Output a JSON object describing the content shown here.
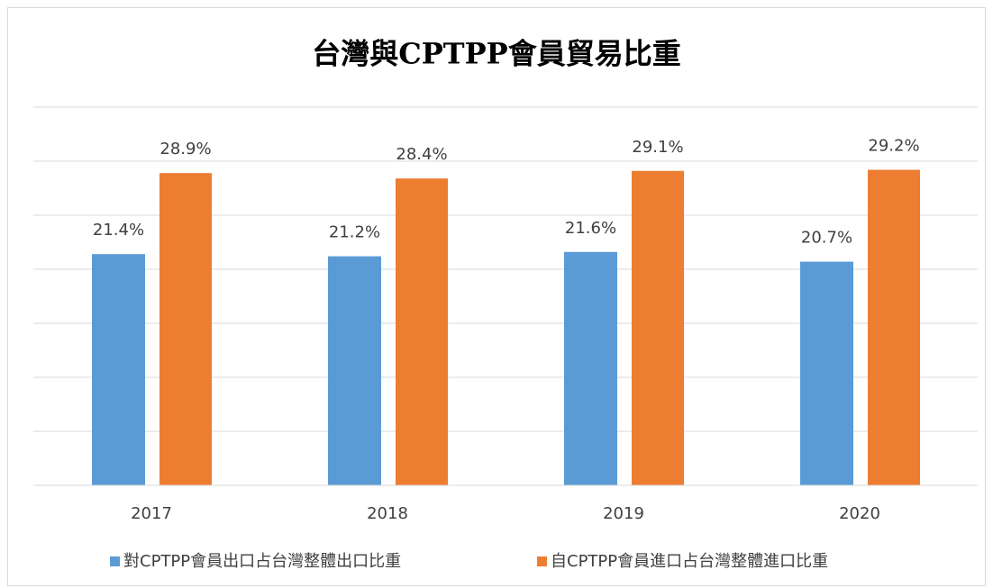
{
  "chart_data": {
    "type": "bar",
    "title": "台灣與CPTPP會員貿易比重",
    "categories": [
      "2017",
      "2018",
      "2019",
      "2020"
    ],
    "series": [
      {
        "name": "對CPTPP會員出口占台灣整體出口比重",
        "color": "#5b9bd5",
        "values": [
          21.4,
          21.2,
          21.6,
          20.7
        ],
        "value_labels": [
          "21.4%",
          "21.2%",
          "21.6%",
          "20.7%"
        ]
      },
      {
        "name": "自CPTPP會員進口占台灣整體進口比重",
        "color": "#ed7d31",
        "values": [
          28.9,
          28.4,
          29.1,
          29.2
        ],
        "value_labels": [
          "28.9%",
          "28.4%",
          "29.1%",
          "29.2%"
        ]
      }
    ],
    "ylim": [
      0,
      35
    ],
    "yticks": [
      0,
      5,
      10,
      15,
      20,
      25,
      30,
      35
    ],
    "grid": true,
    "legend": "bottom"
  }
}
